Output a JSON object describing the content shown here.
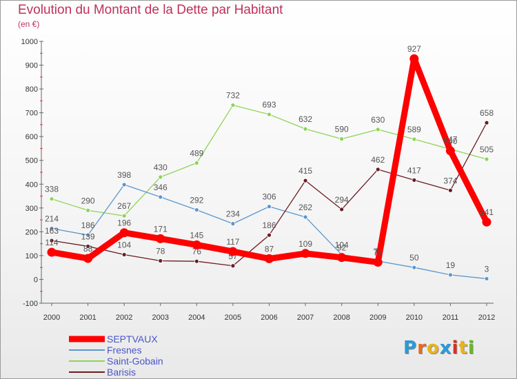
{
  "title": "Evolution du Montant de la Dette par Habitant",
  "subtitle": "(en €)",
  "logo": {
    "letters": [
      "P",
      "r",
      "o",
      "x",
      "i",
      "t",
      "i"
    ],
    "colors": [
      "#2d9ad8",
      "#e86a1a",
      "#e8b61a",
      "#2d9ad8",
      "#d8321a",
      "#e8b61a",
      "#68b82a"
    ]
  },
  "chart_data": {
    "type": "line",
    "x": [
      "2000",
      "2001",
      "2002",
      "2003",
      "2004",
      "2005",
      "2006",
      "2007",
      "2008",
      "2009",
      "2010",
      "2011",
      "2012"
    ],
    "ylim": [
      -100,
      1000
    ],
    "yticks": [
      -100,
      0,
      100,
      200,
      300,
      400,
      500,
      600,
      700,
      800,
      900,
      1000
    ],
    "legend_position": "bottom-left",
    "series": [
      {
        "name": "Saint-Gobain",
        "color": "#8cd456",
        "values": [
          338,
          290,
          267,
          430,
          489,
          732,
          693,
          632,
          590,
          630,
          589,
          547,
          505
        ]
      },
      {
        "name": "Fresnes",
        "color": "#5a96cc",
        "values": [
          214,
          186,
          398,
          346,
          292,
          234,
          306,
          262,
          104,
          77,
          50,
          19,
          3
        ]
      },
      {
        "name": "Barisis",
        "color": "#6a1c22",
        "values": [
          163,
          139,
          104,
          78,
          76,
          57,
          186,
          415,
          294,
          462,
          417,
          374,
          658
        ]
      },
      {
        "name": "SEPTVAUX",
        "color": "#ff0000",
        "values": [
          114,
          88,
          196,
          171,
          145,
          117,
          87,
          109,
          92,
          72,
          927,
          540,
          241
        ]
      }
    ],
    "legend": [
      "SEPTVAUX",
      "Fresnes",
      "Saint-Gobain",
      "Barisis"
    ]
  }
}
